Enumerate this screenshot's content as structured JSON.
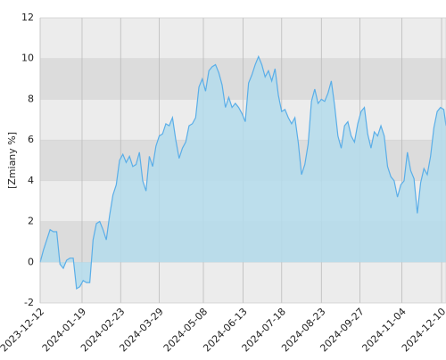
{
  "chart_data": {
    "type": "area",
    "y_label": "[Zmiany %]",
    "x": [
      "2023-12-12",
      "2023-12-15",
      "2023-12-18",
      "2023-12-21",
      "2023-12-24",
      "2023-12-27",
      "2023-12-30",
      "2024-01-02",
      "2024-01-05",
      "2024-01-08",
      "2024-01-11",
      "2024-01-14",
      "2024-01-17",
      "2024-01-20",
      "2024-01-23",
      "2024-01-26",
      "2024-01-29",
      "2024-02-01",
      "2024-02-04",
      "2024-02-07",
      "2024-02-10",
      "2024-02-13",
      "2024-02-16",
      "2024-02-19",
      "2024-02-22",
      "2024-02-25",
      "2024-02-28",
      "2024-03-02",
      "2024-03-05",
      "2024-03-08",
      "2024-03-11",
      "2024-03-14",
      "2024-03-17",
      "2024-03-20",
      "2024-03-23",
      "2024-03-26",
      "2024-03-29",
      "2024-04-01",
      "2024-04-04",
      "2024-04-07",
      "2024-04-10",
      "2024-04-13",
      "2024-04-16",
      "2024-04-19",
      "2024-04-22",
      "2024-04-25",
      "2024-04-28",
      "2024-05-01",
      "2024-05-04",
      "2024-05-07",
      "2024-05-10",
      "2024-05-13",
      "2024-05-16",
      "2024-05-19",
      "2024-05-22",
      "2024-05-25",
      "2024-05-28",
      "2024-05-31",
      "2024-06-03",
      "2024-06-06",
      "2024-06-09",
      "2024-06-12",
      "2024-06-15",
      "2024-06-18",
      "2024-06-21",
      "2024-06-24",
      "2024-06-27",
      "2024-06-30",
      "2024-07-03",
      "2024-07-06",
      "2024-07-09",
      "2024-07-12",
      "2024-07-15",
      "2024-07-18",
      "2024-07-21",
      "2024-07-24",
      "2024-07-27",
      "2024-07-30",
      "2024-08-02",
      "2024-08-05",
      "2024-08-08",
      "2024-08-11",
      "2024-08-14",
      "2024-08-17",
      "2024-08-20",
      "2024-08-23",
      "2024-08-26",
      "2024-08-29",
      "2024-09-01",
      "2024-09-04",
      "2024-09-07",
      "2024-09-10",
      "2024-09-13",
      "2024-09-16",
      "2024-09-19",
      "2024-09-22",
      "2024-09-25",
      "2024-09-28",
      "2024-10-01",
      "2024-10-04",
      "2024-10-07",
      "2024-10-10",
      "2024-10-13",
      "2024-10-16",
      "2024-10-19",
      "2024-10-22",
      "2024-10-25",
      "2024-10-28",
      "2024-10-31",
      "2024-11-03",
      "2024-11-06",
      "2024-11-09",
      "2024-11-12",
      "2024-11-15",
      "2024-11-18",
      "2024-11-21",
      "2024-11-24",
      "2024-11-27",
      "2024-11-30",
      "2024-12-03",
      "2024-12-06",
      "2024-12-09",
      "2024-12-12",
      "2024-12-14"
    ],
    "values": [
      0,
      0.6,
      1.1,
      1.6,
      1.5,
      1.5,
      -0.1,
      -0.3,
      0.1,
      0.2,
      0.2,
      -1.3,
      -1.2,
      -0.9,
      -1.0,
      -1.0,
      1.1,
      1.9,
      2.0,
      1.6,
      1.1,
      2.3,
      3.3,
      3.8,
      5.0,
      5.3,
      4.9,
      5.2,
      4.7,
      4.8,
      5.4,
      4.0,
      3.5,
      5.2,
      4.7,
      5.7,
      6.2,
      6.3,
      6.8,
      6.7,
      7.1,
      6.0,
      5.1,
      5.6,
      5.9,
      6.7,
      6.8,
      7.1,
      8.6,
      9.0,
      8.4,
      9.4,
      9.6,
      9.7,
      9.3,
      8.7,
      7.6,
      8.1,
      7.6,
      7.8,
      7.6,
      7.3,
      6.9,
      8.8,
      9.2,
      9.7,
      10.1,
      9.7,
      9.1,
      9.4,
      8.9,
      9.5,
      8.2,
      7.4,
      7.5,
      7.1,
      6.8,
      7.1,
      5.9,
      4.3,
      4.8,
      5.8,
      7.9,
      8.5,
      7.8,
      8.0,
      7.9,
      8.3,
      8.9,
      7.7,
      6.2,
      5.6,
      6.7,
      6.9,
      6.2,
      5.9,
      6.8,
      7.4,
      7.6,
      6.3,
      5.6,
      6.4,
      6.2,
      6.7,
      6.2,
      4.7,
      4.2,
      4.0,
      3.2,
      3.8,
      4.0,
      5.4,
      4.5,
      4.1,
      2.4,
      3.9,
      4.6,
      4.3,
      5.2,
      6.6,
      7.4,
      7.6,
      7.5,
      6.7
    ],
    "xlim": [
      "2023-12-12",
      "2024-12-14"
    ],
    "xticks": [
      "2023-12-12",
      "2024-01-19",
      "2024-02-23",
      "2024-03-29",
      "2024-05-08",
      "2024-06-13",
      "2024-07-18",
      "2024-08-23",
      "2024-09-27",
      "2024-11-04",
      "2024-12-10"
    ],
    "ylim": [
      -2,
      12
    ],
    "yticks": [
      -2,
      0,
      2,
      4,
      6,
      8,
      10,
      12
    ],
    "line_color": "#5aaee8",
    "fill_color": "#b4dcec",
    "band_colors": [
      "#ececec",
      "#dcdcdc"
    ],
    "grid": true
  }
}
